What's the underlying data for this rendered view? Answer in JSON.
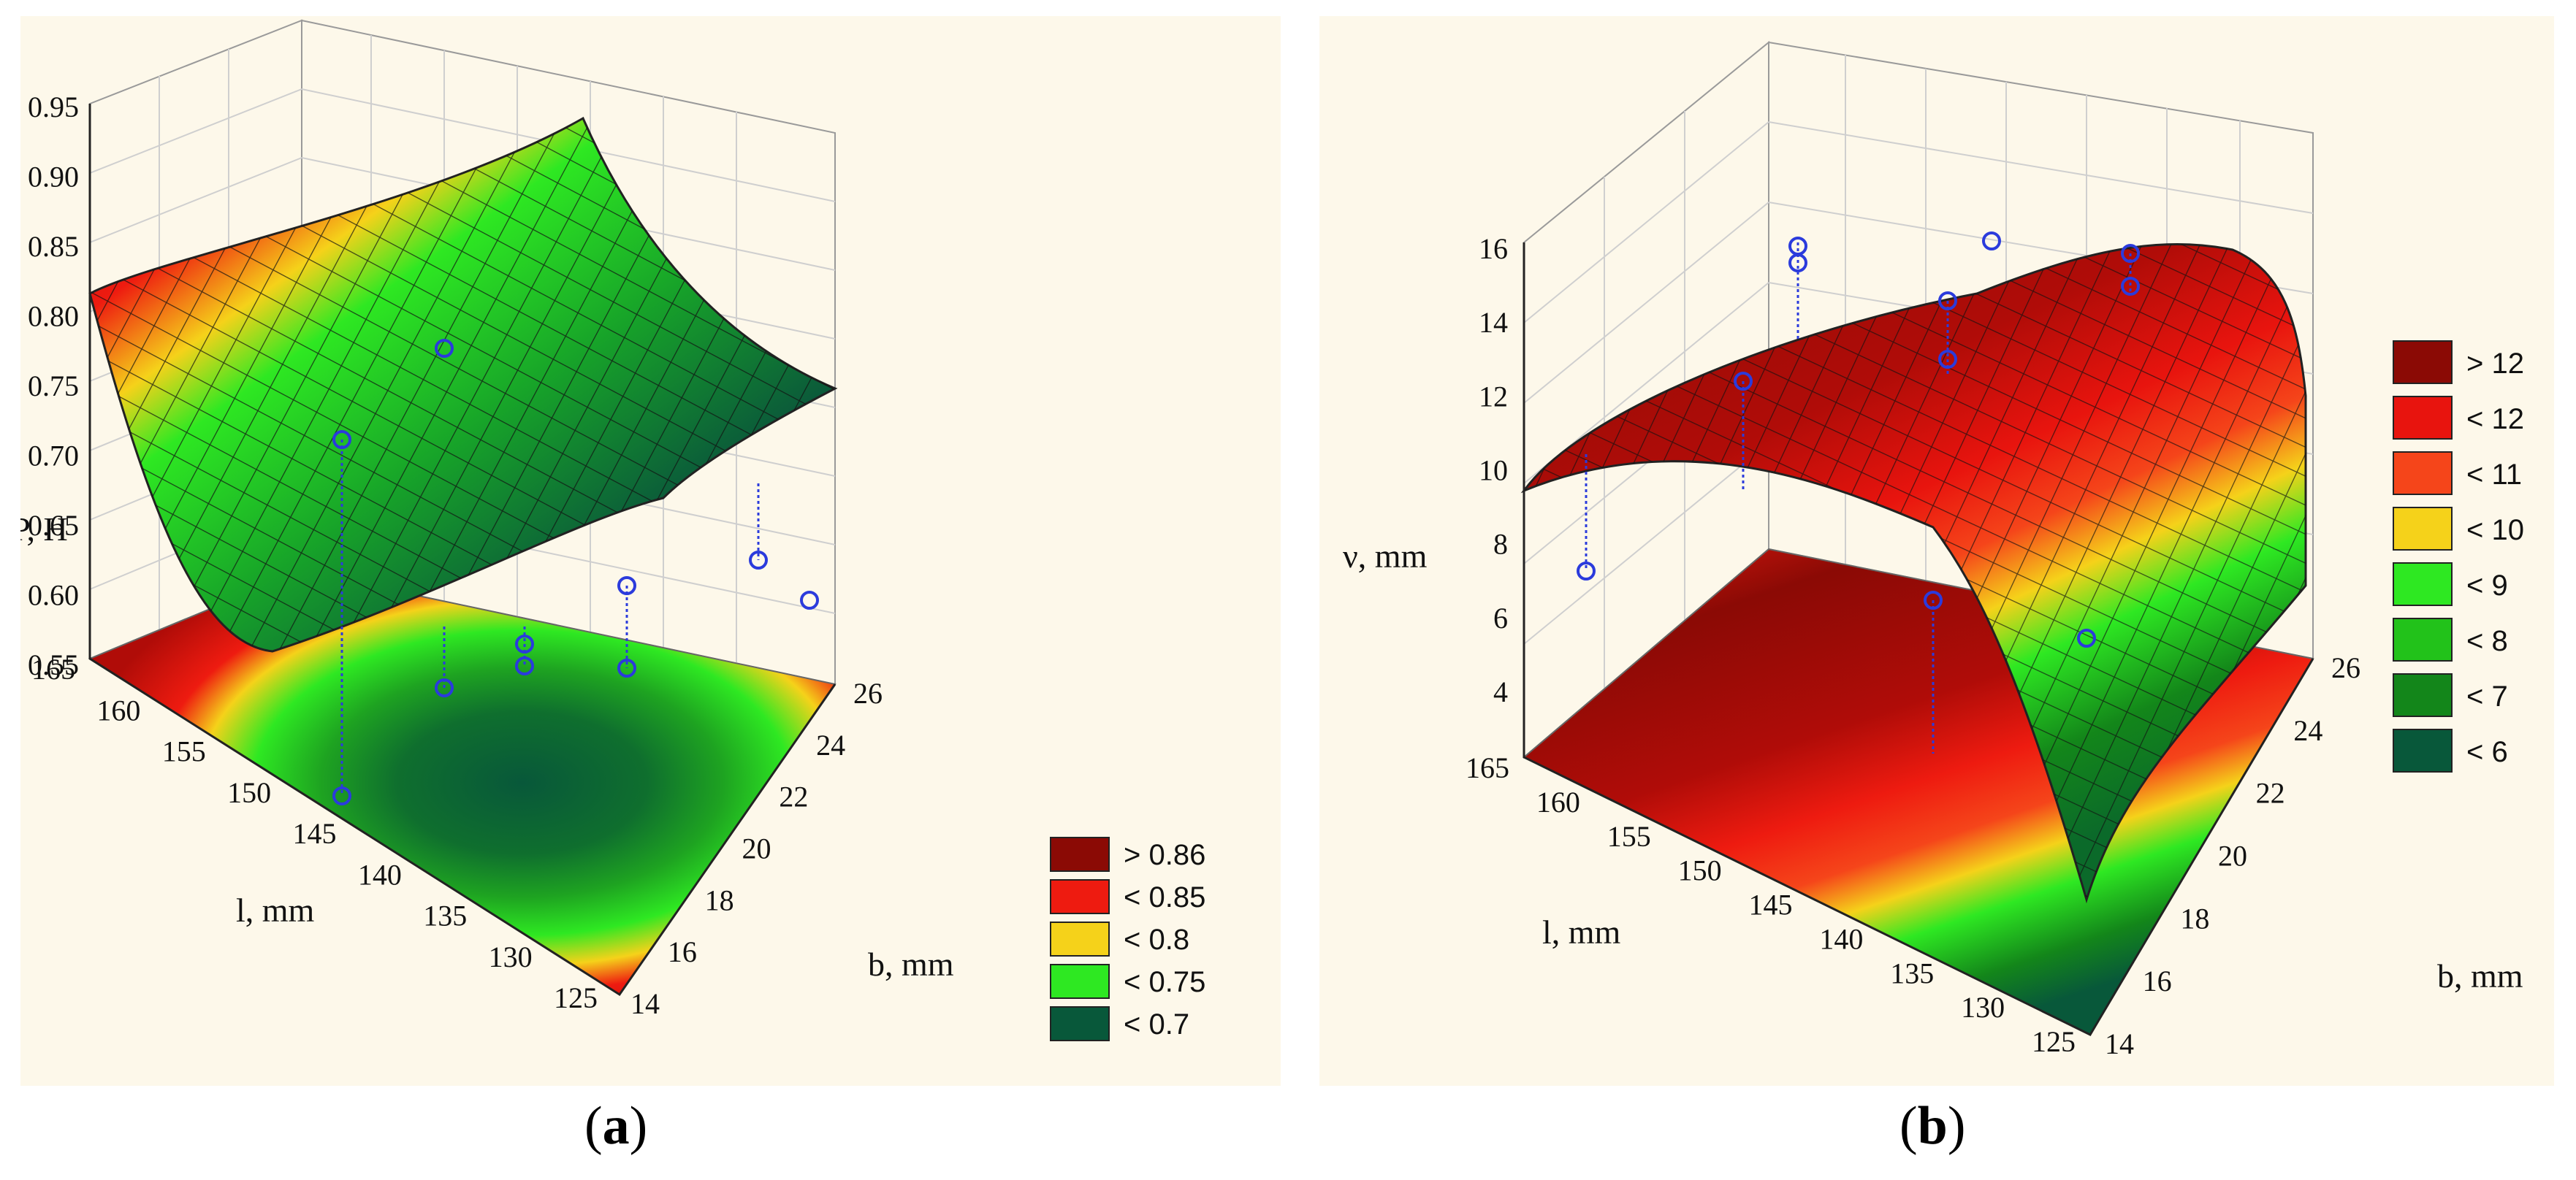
{
  "captions": {
    "a_open": "(",
    "a_letter": "a",
    "a_close": ")",
    "b_open": "(",
    "b_letter": "b",
    "b_close": ")"
  },
  "chart_data": [
    {
      "id": "a",
      "type": "surface3d",
      "zlabel": "P, H",
      "xlabel": "b, mm",
      "ylabel": "l, mm",
      "zticks": [
        "0.95",
        "0.90",
        "0.85",
        "0.80",
        "0.75",
        "0.70",
        "0.65",
        "0.60",
        "0.55"
      ],
      "xticks": [
        "14",
        "16",
        "18",
        "20",
        "22",
        "24",
        "26"
      ],
      "yticks": [
        "165",
        "160",
        "155",
        "150",
        "145",
        "140",
        "135",
        "130",
        "125"
      ],
      "zlim": [
        0.55,
        0.95
      ],
      "xlim": [
        14,
        26
      ],
      "ylim": [
        125,
        165
      ],
      "legend": [
        {
          "label": "> 0.86",
          "color": "#8b0a05"
        },
        {
          "label": "< 0.85",
          "color": "#ee1b10"
        },
        {
          "label": "< 0.8",
          "color": "#f5d21a"
        },
        {
          "label": "< 0.75",
          "color": "#2ee822"
        },
        {
          "label": "< 0.7",
          "color": "#08583a"
        }
      ],
      "points_note": "observed values marked with blue circles"
    },
    {
      "id": "b",
      "type": "surface3d",
      "zlabel": "ν, mm",
      "xlabel": "b, mm",
      "ylabel": "l, mm",
      "zticks": [
        "16",
        "14",
        "12",
        "10",
        "8",
        "6",
        "4"
      ],
      "xticks": [
        "14",
        "16",
        "18",
        "20",
        "22",
        "24",
        "26"
      ],
      "yticks": [
        "165",
        "160",
        "155",
        "150",
        "145",
        "140",
        "135",
        "130",
        "125"
      ],
      "zlim": [
        4,
        16
      ],
      "xlim": [
        14,
        26
      ],
      "ylim": [
        125,
        165
      ],
      "legend": [
        {
          "label": "> 12",
          "color": "#8b0a05"
        },
        {
          "label": "< 12",
          "color": "#e8140e"
        },
        {
          "label": "< 11",
          "color": "#f5451a"
        },
        {
          "label": "< 10",
          "color": "#f5d21a"
        },
        {
          "label": "< 9",
          "color": "#2ee822"
        },
        {
          "label": "< 8",
          "color": "#22c21a"
        },
        {
          "label": "< 7",
          "color": "#13861a"
        },
        {
          "label": "< 6",
          "color": "#08583a"
        }
      ],
      "points_note": "observed values marked with blue circles"
    }
  ]
}
